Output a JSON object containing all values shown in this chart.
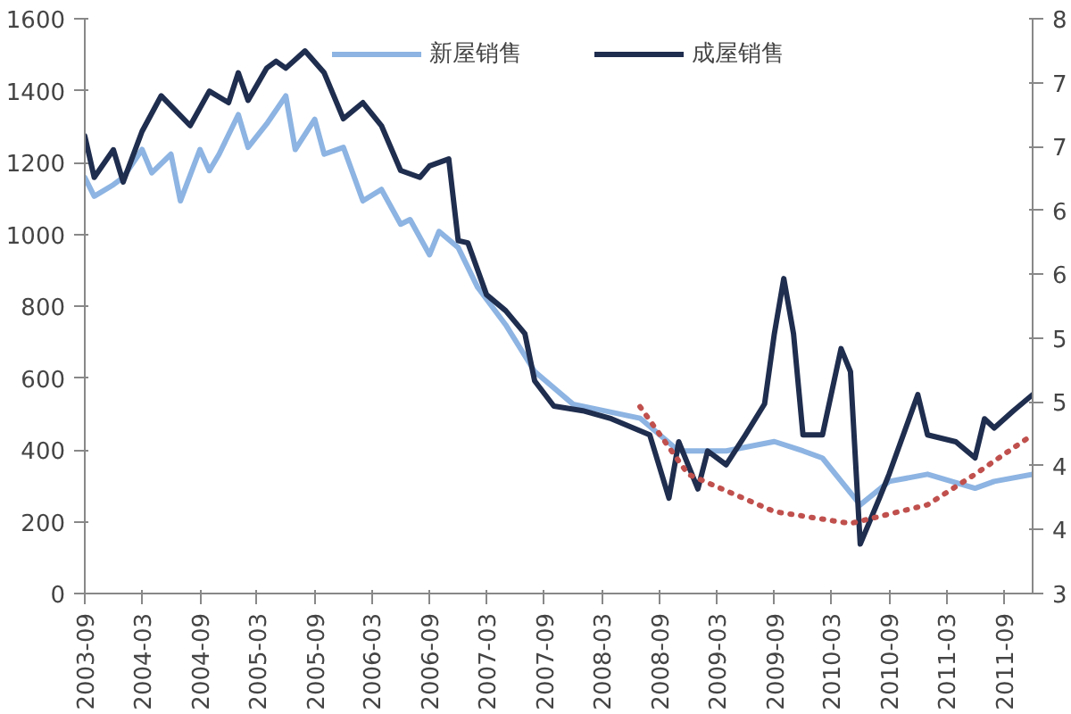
{
  "chart_data": {
    "type": "line",
    "legend": "top",
    "grid": false,
    "line_style": "solid",
    "marker": "none",
    "xlim": [
      "2003-09",
      "2011-12"
    ],
    "xticks": [
      "2003-09",
      "2004-03",
      "2004-09",
      "2005-03",
      "2005-09",
      "2006-03",
      "2006-09",
      "2007-03",
      "2007-09",
      "2008-03",
      "2008-09",
      "2009-03",
      "2009-09",
      "2010-03",
      "2010-09",
      "2011-03",
      "2011-09"
    ],
    "ylim": [
      0,
      1600
    ],
    "yticks": [
      0,
      200,
      400,
      600,
      800,
      1000,
      1200,
      1400,
      1600
    ],
    "y2lim": [
      3,
      8
    ],
    "y2ticks": [
      {
        "value": 3,
        "label": "3"
      },
      {
        "value": 3.556,
        "label": "4"
      },
      {
        "value": 4.111,
        "label": "4"
      },
      {
        "value": 4.667,
        "label": "5"
      },
      {
        "value": 5.222,
        "label": "5"
      },
      {
        "value": 5.778,
        "label": "6"
      },
      {
        "value": 6.333,
        "label": "6"
      },
      {
        "value": 6.889,
        "label": "7"
      },
      {
        "value": 7.444,
        "label": "7"
      },
      {
        "value": 8,
        "label": "8"
      }
    ],
    "series": [
      {
        "name": "新屋销售",
        "color": "#8db4e2",
        "x": [
          "2003-09",
          "2003-10",
          "2003-12",
          "2004-01",
          "2004-03",
          "2004-04",
          "2004-06",
          "2004-07",
          "2004-09",
          "2004-10",
          "2004-11",
          "2005-01",
          "2005-02",
          "2005-04",
          "2005-06",
          "2005-07",
          "2005-09",
          "2005-10",
          "2005-12",
          "2006-02",
          "2006-04",
          "2006-06",
          "2006-07",
          "2006-09",
          "2006-10",
          "2006-12",
          "2007-02",
          "2007-05",
          "2007-08",
          "2007-12",
          "2008-07",
          "2008-11",
          "2009-04",
          "2009-09",
          "2009-12",
          "2010-02",
          "2010-06",
          "2010-09",
          "2011-01",
          "2011-06",
          "2011-08",
          "2011-12"
        ],
        "values": [
          1158,
          1106,
          1138,
          1158,
          1236,
          1171,
          1223,
          1093,
          1236,
          1177,
          1223,
          1333,
          1242,
          1307,
          1385,
          1236,
          1320,
          1223,
          1242,
          1093,
          1125,
          1028,
          1041,
          943,
          1008,
          963,
          852,
          748,
          618,
          527,
          488,
          397,
          397,
          423,
          397,
          377,
          247,
          312,
          332,
          293,
          312,
          332
        ]
      },
      {
        "name": "成屋销售",
        "color": "#1f2d4e",
        "axis": "y2",
        "x": [
          "2003-09",
          "2003-10",
          "2003-12",
          "2004-01",
          "2004-03",
          "2004-05",
          "2004-08",
          "2004-10",
          "2004-12",
          "2005-01",
          "2005-02",
          "2005-04",
          "2005-05",
          "2005-06",
          "2005-08",
          "2005-10",
          "2005-12",
          "2006-02",
          "2006-04",
          "2006-06",
          "2006-08",
          "2006-09",
          "2006-11",
          "2006-12",
          "2007-01",
          "2007-03",
          "2007-05",
          "2007-07",
          "2007-08",
          "2007-10",
          "2008-01",
          "2008-04",
          "2008-08",
          "2008-10",
          "2008-11",
          "2009-01",
          "2009-02",
          "2009-04",
          "2009-06",
          "2009-08",
          "2009-09",
          "2009-10",
          "2009-11",
          "2009-12",
          "2010-02",
          "2010-04",
          "2010-05",
          "2010-06",
          "2010-08",
          "2010-09",
          "2010-12",
          "2011-01",
          "2011-04",
          "2011-06",
          "2011-07",
          "2011-08",
          "2011-10",
          "2011-12"
        ],
        "values": [
          6.98,
          6.62,
          6.86,
          6.58,
          7.02,
          7.33,
          7.07,
          7.37,
          7.27,
          7.53,
          7.29,
          7.57,
          7.63,
          7.57,
          7.72,
          7.53,
          7.13,
          7.27,
          7.07,
          6.68,
          6.62,
          6.72,
          6.78,
          6.07,
          6.05,
          5.6,
          5.46,
          5.26,
          4.85,
          4.63,
          4.59,
          4.52,
          4.38,
          3.83,
          4.32,
          3.91,
          4.24,
          4.12,
          4.38,
          4.65,
          5.26,
          5.74,
          5.26,
          4.38,
          4.38,
          5.13,
          4.93,
          3.43,
          3.83,
          4.04,
          4.73,
          4.38,
          4.32,
          4.18,
          4.52,
          4.44,
          4.59,
          4.73
        ]
      },
      {
        "color": "#c0504d",
        "line_style": "dotted",
        "x": [
          "2008-07",
          "2008-12",
          "2009-09",
          "2010-05",
          "2011-01",
          "2011-06",
          "2011-12"
        ],
        "values": [
          520,
          332,
          228,
          195,
          247,
          332,
          442
        ]
      }
    ]
  }
}
